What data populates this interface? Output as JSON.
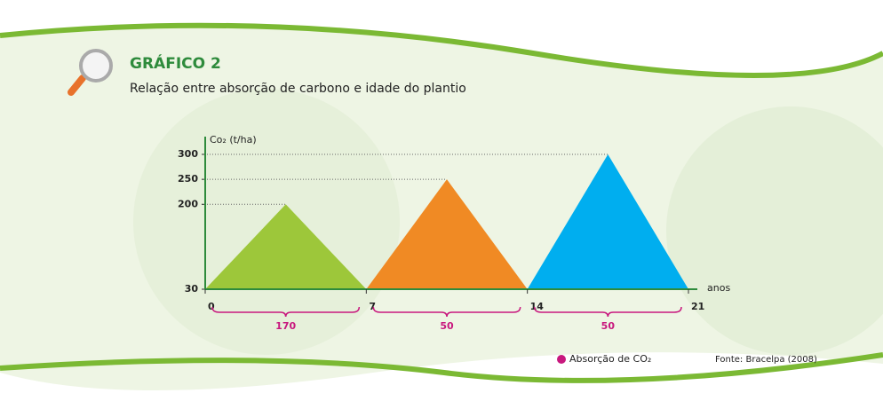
{
  "chart_data": {
    "type": "area",
    "title": "GRÁFICO 2",
    "subtitle": "Relação entre absorção de carbono e idade do plantio",
    "y_label": "Co₂ (t/ha)",
    "x_label": "anos",
    "xlim": [
      0,
      21
    ],
    "xticks": [
      0,
      7,
      14,
      21
    ],
    "ylim": [
      30,
      300
    ],
    "yticks": [
      30,
      200,
      250,
      300
    ],
    "series": [
      {
        "color": "#9dc73a",
        "x": [
          0,
          3.5,
          7
        ],
        "values": [
          30,
          200,
          30
        ]
      },
      {
        "color": "#f08a24",
        "x": [
          7,
          10.5,
          14
        ],
        "values": [
          30,
          250,
          30
        ]
      },
      {
        "color": "#00aeef",
        "x": [
          14,
          17.5,
          21
        ],
        "values": [
          30,
          300,
          30
        ]
      }
    ],
    "intervals": [
      {
        "x": [
          0,
          7
        ],
        "value": 170
      },
      {
        "x": [
          7,
          14
        ],
        "value": 50
      },
      {
        "x": [
          14,
          21
        ],
        "value": 50
      }
    ],
    "interval_color": "#c8187e",
    "legend": "Absorção de CO₂",
    "source": "Fonte: Bracelpa (2008)"
  }
}
